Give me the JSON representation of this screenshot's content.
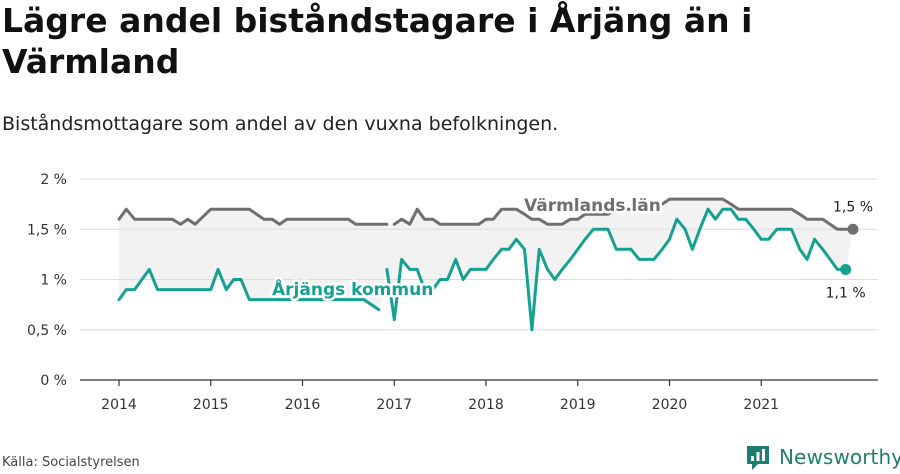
{
  "title": "Lägre andel biståndstagare i Årjäng än i Värmland",
  "subtitle": "Biståndsmottagare som andel av den vuxna befolkningen.",
  "source": "Källa: Socialstyrelsen",
  "brand": "Newsworthy",
  "colors": {
    "lan": "#6f6e71",
    "kommun": "#15a191",
    "band": "#f2f2f2",
    "brand": "#1f7f6e"
  },
  "chart_data": {
    "type": "line",
    "x_ticks": [
      "2014",
      "2015",
      "2016",
      "2017",
      "2018",
      "2019",
      "2020",
      "2021"
    ],
    "y_ticks": [
      "0 %",
      "0,5 %",
      "1 %",
      "1,5 %",
      "2 %"
    ],
    "ylim": [
      0,
      2
    ],
    "xlim": [
      2014,
      2022
    ],
    "grid": true,
    "series": [
      {
        "name": "Värmlands län",
        "label": "Värmlands län",
        "end_label": "1,5 %",
        "color": "#6f6e71",
        "points": [
          [
            2014.0,
            1.6
          ],
          [
            2014.08,
            1.7
          ],
          [
            2014.17,
            1.6
          ],
          [
            2014.25,
            1.6
          ],
          [
            2014.33,
            1.6
          ],
          [
            2014.42,
            1.6
          ],
          [
            2014.5,
            1.6
          ],
          [
            2014.58,
            1.6
          ],
          [
            2014.67,
            1.55
          ],
          [
            2014.75,
            1.6
          ],
          [
            2014.83,
            1.55
          ],
          [
            2015.0,
            1.7
          ],
          [
            2015.08,
            1.7
          ],
          [
            2015.17,
            1.7
          ],
          [
            2015.25,
            1.7
          ],
          [
            2015.33,
            1.7
          ],
          [
            2015.42,
            1.7
          ],
          [
            2015.5,
            1.65
          ],
          [
            2015.58,
            1.6
          ],
          [
            2015.67,
            1.6
          ],
          [
            2015.75,
            1.55
          ],
          [
            2015.83,
            1.6
          ],
          [
            2015.92,
            1.6
          ],
          [
            2016.0,
            1.6
          ],
          [
            2016.08,
            1.6
          ],
          [
            2016.17,
            1.6
          ],
          [
            2016.25,
            1.6
          ],
          [
            2016.33,
            1.6
          ],
          [
            2016.42,
            1.6
          ],
          [
            2016.5,
            1.6
          ],
          [
            2016.58,
            1.55
          ],
          [
            2016.67,
            1.55
          ],
          [
            2016.75,
            1.55
          ],
          [
            2016.83,
            1.55
          ],
          [
            2016.92,
            1.55
          ],
          null,
          [
            2017.0,
            1.55
          ],
          [
            2017.08,
            1.6
          ],
          [
            2017.17,
            1.55
          ],
          [
            2017.25,
            1.7
          ],
          [
            2017.33,
            1.6
          ],
          [
            2017.42,
            1.6
          ],
          [
            2017.5,
            1.55
          ],
          [
            2017.58,
            1.55
          ],
          [
            2017.67,
            1.55
          ],
          [
            2017.75,
            1.55
          ],
          [
            2017.83,
            1.55
          ],
          [
            2017.92,
            1.55
          ],
          [
            2018.0,
            1.6
          ],
          [
            2018.08,
            1.6
          ],
          [
            2018.17,
            1.7
          ],
          [
            2018.25,
            1.7
          ],
          [
            2018.33,
            1.7
          ],
          [
            2018.42,
            1.65
          ],
          [
            2018.5,
            1.6
          ],
          [
            2018.58,
            1.6
          ],
          [
            2018.67,
            1.55
          ],
          [
            2018.75,
            1.55
          ],
          [
            2018.83,
            1.55
          ],
          [
            2018.92,
            1.6
          ],
          [
            2019.0,
            1.6
          ],
          [
            2019.08,
            1.65
          ],
          [
            2019.17,
            1.65
          ],
          [
            2019.25,
            1.65
          ],
          [
            2019.33,
            1.65
          ],
          [
            2019.42,
            1.7
          ],
          [
            2019.5,
            1.7
          ],
          [
            2019.58,
            1.7
          ],
          [
            2019.67,
            1.7
          ],
          [
            2019.75,
            1.7
          ],
          [
            2019.83,
            1.75
          ],
          [
            2019.92,
            1.75
          ],
          [
            2020.0,
            1.8
          ],
          [
            2020.08,
            1.8
          ],
          [
            2020.17,
            1.8
          ],
          [
            2020.25,
            1.8
          ],
          [
            2020.33,
            1.8
          ],
          [
            2020.42,
            1.8
          ],
          [
            2020.5,
            1.8
          ],
          [
            2020.58,
            1.8
          ],
          [
            2020.67,
            1.75
          ],
          [
            2020.75,
            1.7
          ],
          [
            2020.83,
            1.7
          ],
          [
            2020.92,
            1.7
          ],
          [
            2021.0,
            1.7
          ],
          [
            2021.08,
            1.7
          ],
          [
            2021.17,
            1.7
          ],
          [
            2021.25,
            1.7
          ],
          [
            2021.33,
            1.7
          ],
          [
            2021.42,
            1.65
          ],
          [
            2021.5,
            1.6
          ],
          [
            2021.58,
            1.6
          ],
          [
            2021.67,
            1.6
          ],
          [
            2021.75,
            1.55
          ],
          [
            2021.83,
            1.5
          ],
          [
            2021.92,
            1.5
          ],
          [
            2022.0,
            1.5
          ]
        ]
      },
      {
        "name": "Årjängs kommun",
        "label": "Årjängs kommun",
        "end_label": "1,1 %",
        "color": "#15a191",
        "points": [
          [
            2014.0,
            0.8
          ],
          [
            2014.08,
            0.9
          ],
          [
            2014.17,
            0.9
          ],
          [
            2014.25,
            1.0
          ],
          [
            2014.33,
            1.1
          ],
          [
            2014.42,
            0.9
          ],
          [
            2014.5,
            0.9
          ],
          [
            2014.58,
            0.9
          ],
          [
            2014.67,
            0.9
          ],
          [
            2014.75,
            0.9
          ],
          [
            2014.83,
            0.9
          ],
          [
            2014.92,
            0.9
          ],
          [
            2015.0,
            0.9
          ],
          [
            2015.08,
            1.1
          ],
          [
            2015.17,
            0.9
          ],
          [
            2015.25,
            1.0
          ],
          [
            2015.33,
            1.0
          ],
          [
            2015.42,
            0.8
          ],
          [
            2015.5,
            0.8
          ],
          [
            2015.58,
            0.8
          ],
          [
            2015.67,
            0.8
          ],
          [
            2015.75,
            0.8
          ],
          [
            2015.83,
            0.8
          ],
          [
            2015.92,
            0.8
          ],
          [
            2016.0,
            0.8
          ],
          [
            2016.08,
            0.8
          ],
          [
            2016.17,
            0.8
          ],
          [
            2016.25,
            0.8
          ],
          [
            2016.33,
            0.8
          ],
          [
            2016.42,
            0.8
          ],
          [
            2016.5,
            0.8
          ],
          [
            2016.58,
            0.8
          ],
          [
            2016.67,
            0.8
          ],
          [
            2016.75,
            0.75
          ],
          [
            2016.83,
            0.7
          ],
          null,
          [
            2016.92,
            1.1
          ],
          [
            2017.0,
            0.6
          ],
          [
            2017.08,
            1.2
          ],
          [
            2017.17,
            1.1
          ],
          [
            2017.25,
            1.1
          ],
          [
            2017.33,
            0.9
          ],
          [
            2017.42,
            0.9
          ],
          [
            2017.5,
            1.0
          ],
          [
            2017.58,
            1.0
          ],
          [
            2017.67,
            1.2
          ],
          [
            2017.75,
            1.0
          ],
          [
            2017.83,
            1.1
          ],
          [
            2017.92,
            1.1
          ],
          [
            2018.0,
            1.1
          ],
          [
            2018.08,
            1.2
          ],
          [
            2018.17,
            1.3
          ],
          [
            2018.25,
            1.3
          ],
          [
            2018.33,
            1.4
          ],
          [
            2018.42,
            1.3
          ],
          [
            2018.5,
            0.5
          ],
          [
            2018.58,
            1.3
          ],
          [
            2018.67,
            1.1
          ],
          [
            2018.75,
            1.0
          ],
          [
            2018.83,
            1.1
          ],
          [
            2018.92,
            1.2
          ],
          [
            2019.0,
            1.3
          ],
          [
            2019.08,
            1.4
          ],
          [
            2019.17,
            1.5
          ],
          [
            2019.25,
            1.5
          ],
          [
            2019.33,
            1.5
          ],
          [
            2019.42,
            1.3
          ],
          [
            2019.5,
            1.3
          ],
          [
            2019.58,
            1.3
          ],
          [
            2019.67,
            1.2
          ],
          [
            2019.75,
            1.2
          ],
          [
            2019.83,
            1.2
          ],
          [
            2019.92,
            1.3
          ],
          [
            2020.0,
            1.4
          ],
          [
            2020.08,
            1.6
          ],
          [
            2020.17,
            1.5
          ],
          [
            2020.25,
            1.3
          ],
          [
            2020.33,
            1.5
          ],
          [
            2020.42,
            1.7
          ],
          [
            2020.5,
            1.6
          ],
          [
            2020.58,
            1.7
          ],
          [
            2020.67,
            1.7
          ],
          [
            2020.75,
            1.6
          ],
          [
            2020.83,
            1.6
          ],
          [
            2020.92,
            1.5
          ],
          [
            2021.0,
            1.4
          ],
          [
            2021.08,
            1.4
          ],
          [
            2021.17,
            1.5
          ],
          [
            2021.25,
            1.5
          ],
          [
            2021.33,
            1.5
          ],
          [
            2021.42,
            1.3
          ],
          [
            2021.5,
            1.2
          ],
          [
            2021.58,
            1.4
          ],
          [
            2021.67,
            1.3
          ],
          [
            2021.75,
            1.2
          ],
          [
            2021.83,
            1.1
          ],
          [
            2021.92,
            1.1
          ]
        ]
      }
    ]
  }
}
